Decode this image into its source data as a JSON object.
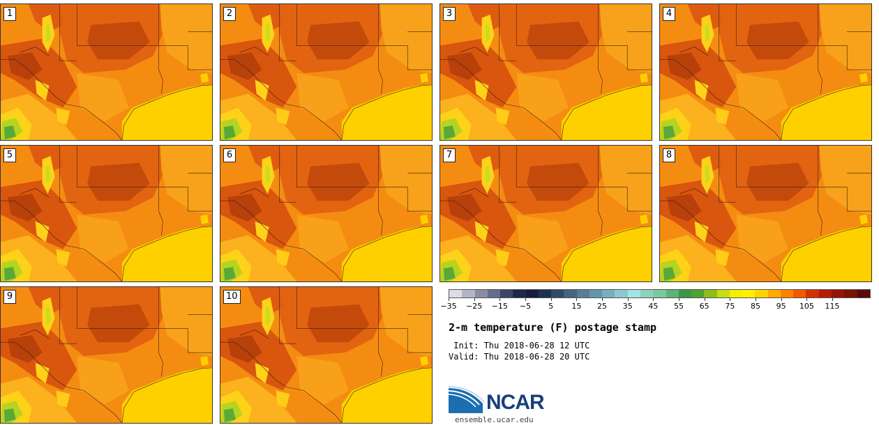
{
  "panels": [
    {
      "label": "1"
    },
    {
      "label": "2"
    },
    {
      "label": "3"
    },
    {
      "label": "4"
    },
    {
      "label": "5"
    },
    {
      "label": "6"
    },
    {
      "label": "7"
    },
    {
      "label": "8"
    },
    {
      "label": "9"
    },
    {
      "label": "10"
    }
  ],
  "colorbar": {
    "colors": [
      "#dcdce6",
      "#b4b4c8",
      "#8c8ca0",
      "#646e8c",
      "#3c4664",
      "#1e2846",
      "#141e3c",
      "#1e324b",
      "#324b64",
      "#46647d",
      "#5a7d96",
      "#6496aa",
      "#78afbe",
      "#8cc8d2",
      "#a0e6e6",
      "#8cd2be",
      "#78c8a0",
      "#5ab478",
      "#3c9646",
      "#50a032",
      "#8cbe1e",
      "#c8dc14",
      "#f0f000",
      "#fff000",
      "#ffd200",
      "#ffaa00",
      "#fa8200",
      "#f05a00",
      "#d23200",
      "#b41e00",
      "#961400",
      "#781400",
      "#5a0a0a"
    ],
    "tick_labels": [
      "−35",
      "−25",
      "−15",
      "−5",
      "5",
      "15",
      "25",
      "35",
      "45",
      "55",
      "65",
      "75",
      "85",
      "95",
      "105",
      "115"
    ]
  },
  "title": "2-m temperature (F) postage stamp",
  "init": " Init: Thu 2018-06-28 12 UTC",
  "valid": "Valid: Thu 2018-06-28 20 UTC",
  "logo": {
    "text": "NCAR",
    "url": "ensemble.ucar.edu"
  }
}
